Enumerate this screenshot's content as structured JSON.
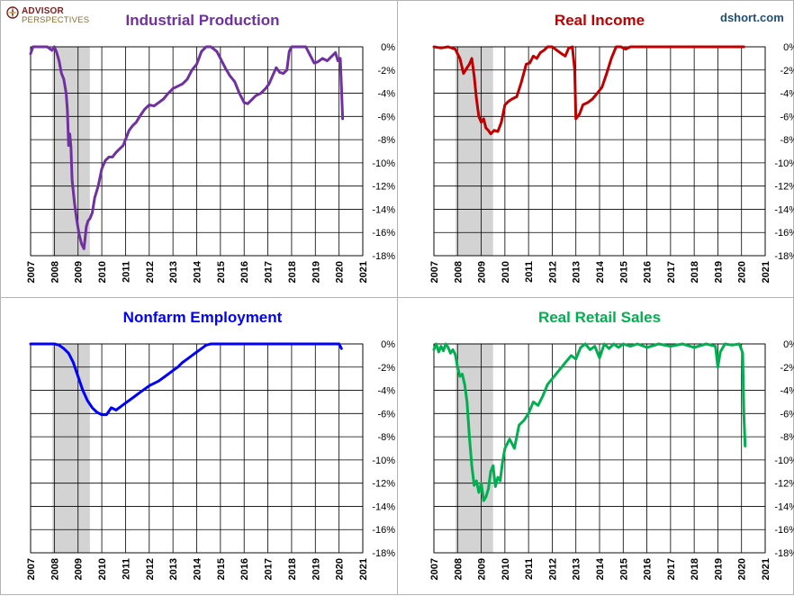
{
  "brand": {
    "logo_line1": "ADVISOR",
    "logo_line2": "PERSPECTIVES",
    "site": "dshort.com"
  },
  "x_labels": [
    "2007",
    "2008",
    "2009",
    "2010",
    "2011",
    "2012",
    "2013",
    "2014",
    "2015",
    "2016",
    "2017",
    "2018",
    "2019",
    "2020",
    "2021"
  ],
  "y_labels": [
    "0%",
    "-2%",
    "-4%",
    "-6%",
    "-8%",
    "-10%",
    "-12%",
    "-14%",
    "-16%",
    "-18%"
  ],
  "recession": {
    "start": 2007.92,
    "end": 2009.5
  },
  "chart_data": [
    {
      "type": "line",
      "title": "Industrial Production",
      "color": "#7030a0",
      "xlim": [
        2007,
        2021
      ],
      "ylim": [
        -18,
        0
      ],
      "recession_shading": [
        2007.92,
        2009.5
      ],
      "x": [
        2007.0,
        2007.1,
        2007.3,
        2007.5,
        2007.7,
        2007.9,
        2008.0,
        2008.1,
        2008.2,
        2008.3,
        2008.4,
        2008.5,
        2008.55,
        2008.6,
        2008.65,
        2008.7,
        2008.75,
        2008.85,
        2008.95,
        2009.05,
        2009.15,
        2009.25,
        2009.35,
        2009.42,
        2009.5,
        2009.6,
        2009.7,
        2009.85,
        2010.0,
        2010.15,
        2010.3,
        2010.45,
        2010.6,
        2010.75,
        2010.9,
        2011.0,
        2011.15,
        2011.3,
        2011.45,
        2011.6,
        2011.8,
        2012.0,
        2012.2,
        2012.4,
        2012.6,
        2012.8,
        2013.0,
        2013.2,
        2013.4,
        2013.6,
        2013.8,
        2014.0,
        2014.2,
        2014.4,
        2014.6,
        2014.85,
        2015.0,
        2015.2,
        2015.4,
        2015.6,
        2015.8,
        2016.0,
        2016.15,
        2016.3,
        2016.5,
        2016.7,
        2016.9,
        2017.05,
        2017.2,
        2017.35,
        2017.5,
        2017.65,
        2017.8,
        2017.9,
        2018.0,
        2018.2,
        2018.4,
        2018.6,
        2018.8,
        2018.95,
        2019.1,
        2019.3,
        2019.5,
        2019.7,
        2019.85,
        2019.95,
        2020.05,
        2020.1,
        2020.15
      ],
      "values": [
        -0.6,
        0,
        0,
        0,
        0,
        -0.3,
        0,
        -0.5,
        -1.2,
        -2.3,
        -2.8,
        -4.0,
        -5.5,
        -8.5,
        -7.5,
        -8.6,
        -11.5,
        -13.5,
        -15.0,
        -16.2,
        -17.0,
        -17.4,
        -15.5,
        -15.0,
        -14.8,
        -14.3,
        -13.0,
        -12.0,
        -10.5,
        -9.8,
        -9.5,
        -9.5,
        -9.1,
        -8.8,
        -8.5,
        -8.0,
        -7.2,
        -6.8,
        -6.5,
        -6.0,
        -5.4,
        -5.0,
        -5.1,
        -4.8,
        -4.5,
        -4.0,
        -3.6,
        -3.4,
        -3.2,
        -2.8,
        -2.0,
        -1.5,
        -0.4,
        0,
        0,
        -0.4,
        -1.0,
        -1.8,
        -2.5,
        -3.0,
        -4.0,
        -4.8,
        -4.9,
        -4.6,
        -4.2,
        -4.0,
        -3.6,
        -3.2,
        -2.5,
        -1.8,
        -2.2,
        -2.3,
        -2.0,
        -0.4,
        0,
        0,
        0,
        0,
        -0.8,
        -1.4,
        -1.3,
        -1.0,
        -1.2,
        -0.8,
        -0.5,
        -1.2,
        -1.0,
        -3.5,
        -6.2
      ]
    },
    {
      "type": "line",
      "title": "Real Income",
      "color": "#c00000",
      "xlim": [
        2007,
        2021
      ],
      "ylim": [
        -18,
        0
      ],
      "recession_shading": [
        2007.92,
        2009.5
      ],
      "x": [
        2007.0,
        2007.3,
        2007.6,
        2007.9,
        2008.1,
        2008.25,
        2008.4,
        2008.5,
        2008.6,
        2008.7,
        2008.8,
        2008.9,
        2009.0,
        2009.1,
        2009.2,
        2009.3,
        2009.4,
        2009.55,
        2009.7,
        2009.85,
        2010.0,
        2010.15,
        2010.3,
        2010.5,
        2010.7,
        2010.9,
        2011.05,
        2011.2,
        2011.35,
        2011.5,
        2011.65,
        2011.8,
        2012.0,
        2012.2,
        2012.4,
        2012.55,
        2012.7,
        2012.85,
        2012.95,
        2013.0,
        2013.15,
        2013.3,
        2013.5,
        2013.7,
        2013.9,
        2014.1,
        2014.3,
        2014.5,
        2014.7,
        2014.9,
        2015.1,
        2015.3,
        2015.5,
        2015.8,
        2016.0,
        2016.5,
        2017.0,
        2017.5,
        2018.0,
        2018.5,
        2019.0,
        2019.5,
        2020.0,
        2020.1
      ],
      "values": [
        0,
        -0.1,
        0,
        -0.2,
        -1.0,
        -2.3,
        -1.8,
        -1.5,
        -1.0,
        -2.5,
        -4.5,
        -6.0,
        -6.5,
        -6.2,
        -7.0,
        -7.2,
        -7.5,
        -7.2,
        -7.3,
        -6.5,
        -5.0,
        -4.7,
        -4.5,
        -4.3,
        -3.0,
        -1.5,
        -1.4,
        -0.8,
        -1.0,
        -0.5,
        -0.3,
        0,
        0,
        -0.3,
        -0.6,
        -0.8,
        -0.1,
        0,
        -2.0,
        -6.2,
        -5.8,
        -5.0,
        -4.8,
        -4.5,
        -4.0,
        -3.5,
        -2.3,
        -1.0,
        0,
        0,
        -0.2,
        0,
        0,
        0,
        0,
        0,
        0,
        0,
        0,
        0,
        0,
        0,
        0,
        0
      ]
    },
    {
      "type": "line",
      "title": "Nonfarm Employment",
      "color": "#0000ff",
      "xlim": [
        2007,
        2021
      ],
      "ylim": [
        -18,
        0
      ],
      "recession_shading": [
        2007.92,
        2009.5
      ],
      "x": [
        2007.0,
        2007.5,
        2008.0,
        2008.2,
        2008.4,
        2008.6,
        2008.8,
        2009.0,
        2009.2,
        2009.4,
        2009.6,
        2009.8,
        2010.0,
        2010.2,
        2010.4,
        2010.6,
        2010.8,
        2011.0,
        2011.2,
        2011.4,
        2011.6,
        2011.8,
        2012.0,
        2012.2,
        2012.4,
        2012.6,
        2012.8,
        2013.0,
        2013.2,
        2013.4,
        2013.6,
        2013.8,
        2014.0,
        2014.2,
        2014.4,
        2014.6,
        2015.0,
        2016.0,
        2017.0,
        2018.0,
        2019.0,
        2020.0,
        2020.1
      ],
      "values": [
        0,
        0,
        0,
        -0.1,
        -0.4,
        -0.8,
        -1.6,
        -2.8,
        -4.0,
        -4.9,
        -5.5,
        -5.9,
        -6.1,
        -6.1,
        -5.5,
        -5.7,
        -5.4,
        -5.1,
        -4.8,
        -4.5,
        -4.2,
        -3.9,
        -3.6,
        -3.4,
        -3.2,
        -2.9,
        -2.6,
        -2.3,
        -2.0,
        -1.6,
        -1.3,
        -1.0,
        -0.7,
        -0.4,
        -0.1,
        0,
        0,
        0,
        0,
        0,
        0,
        0,
        -0.4
      ]
    },
    {
      "type": "line",
      "title": "Real Retail Sales",
      "color": "#00b050",
      "xlim": [
        2007,
        2021
      ],
      "ylim": [
        -18,
        0
      ],
      "recession_shading": [
        2007.92,
        2009.5
      ],
      "x": [
        2007.0,
        2007.1,
        2007.2,
        2007.3,
        2007.4,
        2007.5,
        2007.6,
        2007.7,
        2007.8,
        2007.9,
        2008.0,
        2008.1,
        2008.2,
        2008.3,
        2008.4,
        2008.5,
        2008.6,
        2008.7,
        2008.8,
        2008.9,
        2009.0,
        2009.1,
        2009.2,
        2009.3,
        2009.4,
        2009.5,
        2009.6,
        2009.7,
        2009.8,
        2009.9,
        2010.0,
        2010.2,
        2010.4,
        2010.6,
        2010.8,
        2011.0,
        2011.2,
        2011.4,
        2011.6,
        2011.8,
        2012.0,
        2012.2,
        2012.4,
        2012.6,
        2012.8,
        2013.0,
        2013.2,
        2013.4,
        2013.6,
        2013.8,
        2014.0,
        2014.2,
        2014.4,
        2014.6,
        2014.8,
        2015.0,
        2015.3,
        2015.6,
        2016.0,
        2016.5,
        2017.0,
        2017.5,
        2018.0,
        2018.5,
        2018.9,
        2019.0,
        2019.1,
        2019.3,
        2019.6,
        2019.9,
        2020.0,
        2020.05,
        2020.1,
        2020.15
      ],
      "values": [
        -0.5,
        0,
        -0.7,
        -0.2,
        -0.6,
        0,
        -0.3,
        -0.8,
        -0.5,
        -0.9,
        -2.0,
        -2.8,
        -2.6,
        -3.5,
        -5.0,
        -8.0,
        -10.5,
        -12.2,
        -11.8,
        -12.8,
        -12.0,
        -13.5,
        -13.2,
        -12.5,
        -11.0,
        -10.5,
        -12.3,
        -11.5,
        -11.8,
        -10.2,
        -9.0,
        -8.2,
        -9.0,
        -7.0,
        -6.6,
        -6.0,
        -5.0,
        -5.3,
        -4.5,
        -3.5,
        -3.0,
        -2.5,
        -2.0,
        -1.5,
        -1.0,
        -1.3,
        -0.3,
        0,
        -0.5,
        -0.2,
        -1.2,
        0,
        -0.4,
        0,
        -0.3,
        0,
        -0.2,
        0,
        -0.3,
        0,
        -0.2,
        0,
        -0.3,
        0,
        -0.2,
        -2.0,
        -0.7,
        0,
        -0.1,
        0,
        -0.5,
        -0.8,
        -6.0,
        -8.8
      ]
    }
  ]
}
